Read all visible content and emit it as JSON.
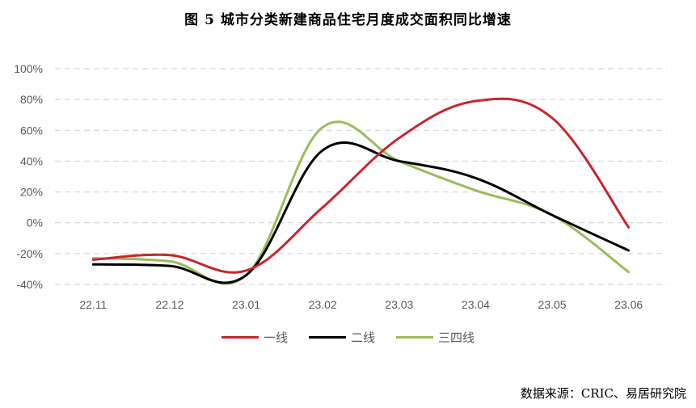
{
  "title": "图 5   城市分类新建商品住宅月度成交面积同比增速",
  "source": "数据来源：CRIC、易居研究院",
  "chart_data": {
    "type": "line",
    "categories": [
      "22.11",
      "22.12",
      "23.01",
      "23.02",
      "23.03",
      "23.04",
      "23.05",
      "23.06"
    ],
    "y_ticks": [
      "100%",
      "80%",
      "60%",
      "40%",
      "20%",
      "0%",
      "-20%",
      "-40%"
    ],
    "ylim": [
      -40,
      100
    ],
    "grid": true,
    "legend_position": "bottom",
    "series": [
      {
        "name": "一线",
        "color": "#c9252c",
        "values": [
          -24,
          -21,
          -31,
          10,
          55,
          79,
          68,
          -3
        ]
      },
      {
        "name": "二线",
        "color": "#000000",
        "values": [
          -27,
          -28,
          -34,
          47,
          40,
          29,
          5,
          -18
        ]
      },
      {
        "name": "三四线",
        "color": "#9bbb59",
        "values": [
          -23,
          -25,
          -34,
          62,
          40,
          21,
          5,
          -32
        ]
      }
    ]
  }
}
